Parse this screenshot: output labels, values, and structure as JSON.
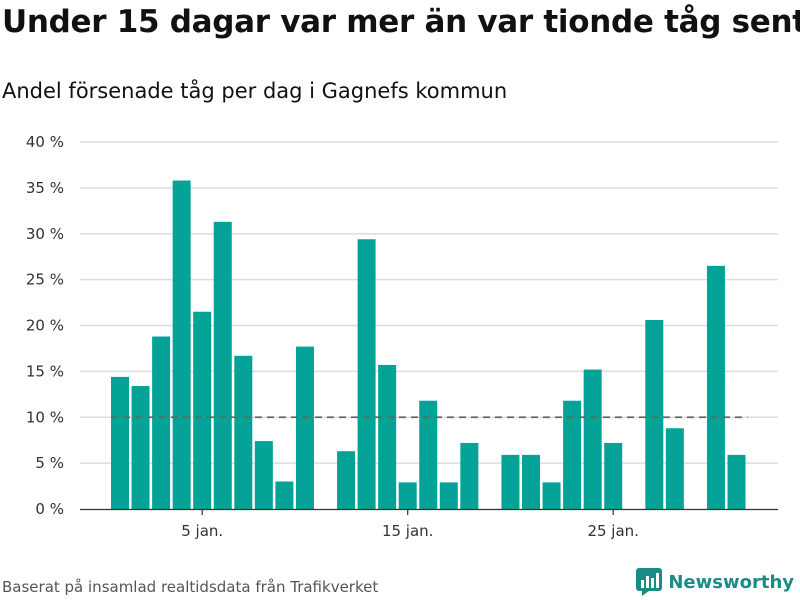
{
  "title": "Under 15 dagar var mer än var tionde tåg sent",
  "subtitle": "Andel försenade tåg per dag i Gagnefs kommun",
  "source": "Baserat på insamlad realtidsdata från Trafikverket",
  "brand": "Newsworthy",
  "colors": {
    "bar": "#05a397",
    "reference_line": "#666666",
    "grid": "#dddddd",
    "brand": "#1a8c85"
  },
  "chart_data": {
    "type": "bar",
    "x": [
      1,
      2,
      3,
      4,
      5,
      6,
      7,
      8,
      9,
      10,
      11,
      12,
      13,
      14,
      15,
      16,
      17,
      18,
      19,
      20,
      21,
      22,
      23,
      24,
      25,
      26,
      27,
      28,
      29,
      30,
      31
    ],
    "x_unit": "day of January",
    "values": [
      14.4,
      13.4,
      18.8,
      35.8,
      21.5,
      31.3,
      16.7,
      7.4,
      3.0,
      17.7,
      null,
      6.3,
      29.4,
      15.7,
      2.9,
      11.8,
      2.9,
      7.2,
      null,
      5.9,
      5.9,
      2.9,
      11.8,
      15.2,
      7.2,
      null,
      20.6,
      8.8,
      null,
      26.5,
      5.9
    ],
    "ylim": [
      0,
      40
    ],
    "yticks": [
      "0 %",
      "5 %",
      "10 %",
      "15 %",
      "20 %",
      "25 %",
      "30 %",
      "35 %",
      "40 %"
    ],
    "ytick_values": [
      0,
      5,
      10,
      15,
      20,
      25,
      30,
      35,
      40
    ],
    "xticks": [
      {
        "x": 5,
        "label": "5 jan."
      },
      {
        "x": 15,
        "label": "15 jan."
      },
      {
        "x": 25,
        "label": "25 jan."
      }
    ],
    "reference_line": {
      "y": 10,
      "style": "dashed"
    },
    "grid": true,
    "legend": false
  }
}
